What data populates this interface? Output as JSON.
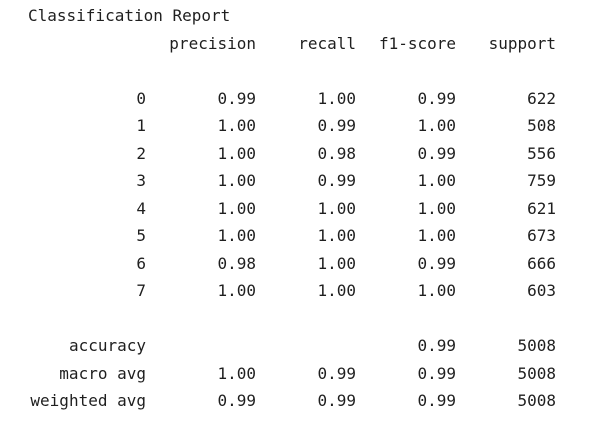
{
  "report": {
    "title": "Classification Report",
    "headers": [
      "",
      "precision",
      "recall",
      "f1-score",
      "support"
    ],
    "class_rows": [
      {
        "label": "0",
        "precision": "0.99",
        "recall": "1.00",
        "f1": "0.99",
        "support": "622"
      },
      {
        "label": "1",
        "precision": "1.00",
        "recall": "0.99",
        "f1": "1.00",
        "support": "508"
      },
      {
        "label": "2",
        "precision": "1.00",
        "recall": "0.98",
        "f1": "0.99",
        "support": "556"
      },
      {
        "label": "3",
        "precision": "1.00",
        "recall": "0.99",
        "f1": "1.00",
        "support": "759"
      },
      {
        "label": "4",
        "precision": "1.00",
        "recall": "1.00",
        "f1": "1.00",
        "support": "621"
      },
      {
        "label": "5",
        "precision": "1.00",
        "recall": "1.00",
        "f1": "1.00",
        "support": "673"
      },
      {
        "label": "6",
        "precision": "0.98",
        "recall": "1.00",
        "f1": "0.99",
        "support": "666"
      },
      {
        "label": "7",
        "precision": "1.00",
        "recall": "1.00",
        "f1": "1.00",
        "support": "603"
      }
    ],
    "summary_rows": [
      {
        "label": "accuracy",
        "precision": "",
        "recall": "",
        "f1": "0.99",
        "support": "5008"
      },
      {
        "label": "macro avg",
        "precision": "1.00",
        "recall": "0.99",
        "f1": "0.99",
        "support": "5008"
      },
      {
        "label": "weighted avg",
        "precision": "0.99",
        "recall": "0.99",
        "f1": "0.99",
        "support": "5008"
      }
    ]
  }
}
